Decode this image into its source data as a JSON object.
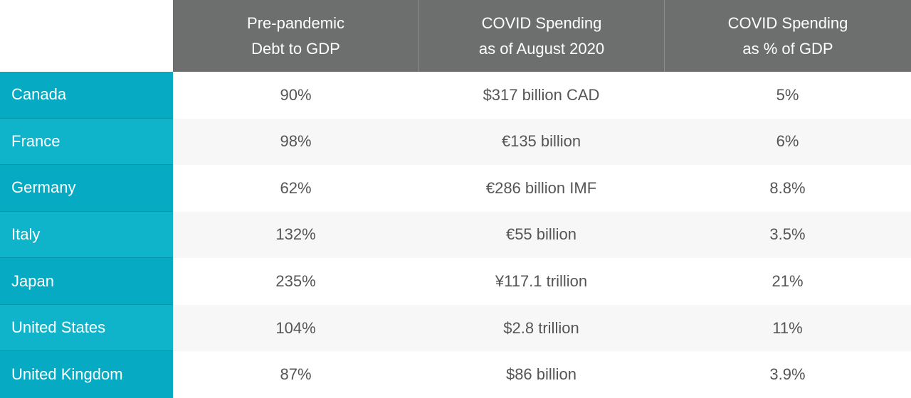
{
  "chart_data": {
    "type": "table",
    "columns": [
      "Pre-pandemic\nDebt to GDP",
      "COVID Spending\nas of August 2020",
      "COVID Spending\nas % of GDP"
    ],
    "rows": [
      {
        "country": "Canada",
        "debt_to_gdp": "90%",
        "covid_spending": "$317 billion CAD",
        "spending_pct_gdp": "5%"
      },
      {
        "country": "France",
        "debt_to_gdp": "98%",
        "covid_spending": "€135 billion",
        "spending_pct_gdp": "6%"
      },
      {
        "country": "Germany",
        "debt_to_gdp": "62%",
        "covid_spending": "€286 billion IMF",
        "spending_pct_gdp": "8.8%"
      },
      {
        "country": "Italy",
        "debt_to_gdp": "132%",
        "covid_spending": "€55 billion",
        "spending_pct_gdp": "3.5%"
      },
      {
        "country": "Japan",
        "debt_to_gdp": "235%",
        "covid_spending": "¥117.1 trillion",
        "spending_pct_gdp": "21%"
      },
      {
        "country": "United States",
        "debt_to_gdp": "104%",
        "covid_spending": "$2.8 trillion",
        "spending_pct_gdp": "11%"
      },
      {
        "country": "United Kingdom",
        "debt_to_gdp": "87%",
        "covid_spending": "$86 billion",
        "spending_pct_gdp": "3.9%"
      }
    ]
  },
  "colors": {
    "header_bg": "#6d6e6e",
    "label_bg": "#06aac3",
    "label_bg_alt": "#0fb3ca",
    "cell_text": "#555555",
    "row_alt_bg": "#f7f7f7"
  }
}
